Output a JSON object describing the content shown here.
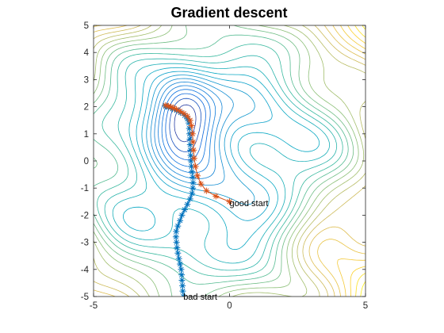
{
  "chart_data": {
    "type": "line",
    "title": "Gradient descent",
    "xlabel": "",
    "ylabel": "",
    "xlim": [
      -5,
      5
    ],
    "ylim": [
      -5,
      5
    ],
    "xticks": [
      -5,
      0,
      5
    ],
    "yticks": [
      -5,
      -4,
      -3,
      -2,
      -1,
      0,
      1,
      2,
      3,
      4,
      5
    ],
    "grid": false,
    "legend": "none",
    "background": "contour",
    "contour_colormap": "parula",
    "series": [
      {
        "color": "#0072BD",
        "marker": "*",
        "points": [
          [
            -1.7,
            -5.0
          ],
          [
            -1.72,
            -4.8
          ],
          [
            -1.73,
            -4.6
          ],
          [
            -1.75,
            -4.4
          ],
          [
            -1.76,
            -4.2
          ],
          [
            -1.78,
            -4.0
          ],
          [
            -1.82,
            -3.8
          ],
          [
            -1.86,
            -3.6
          ],
          [
            -1.9,
            -3.4
          ],
          [
            -1.93,
            -3.2
          ],
          [
            -1.95,
            -3.0
          ],
          [
            -1.97,
            -2.8
          ],
          [
            -1.96,
            -2.6
          ],
          [
            -1.9,
            -2.4
          ],
          [
            -1.82,
            -2.2
          ],
          [
            -1.75,
            -2.0
          ],
          [
            -1.65,
            -1.8
          ],
          [
            -1.55,
            -1.6
          ],
          [
            -1.45,
            -1.4
          ],
          [
            -1.38,
            -1.2
          ],
          [
            -1.35,
            -1.0
          ],
          [
            -1.34,
            -0.8
          ],
          [
            -1.35,
            -0.6
          ],
          [
            -1.38,
            -0.4
          ],
          [
            -1.4,
            -0.2
          ],
          [
            -1.42,
            0.0
          ],
          [
            -1.43,
            0.2
          ],
          [
            -1.44,
            0.4
          ],
          [
            -1.45,
            0.6
          ],
          [
            -1.46,
            0.8
          ],
          [
            -1.47,
            1.0
          ],
          [
            -1.48,
            1.2
          ],
          [
            -1.5,
            1.4
          ],
          [
            -1.55,
            1.55
          ],
          [
            -1.65,
            1.68
          ],
          [
            -1.8,
            1.78
          ],
          [
            -1.95,
            1.86
          ],
          [
            -2.1,
            1.92
          ],
          [
            -2.25,
            1.98
          ],
          [
            -2.35,
            2.02
          ]
        ]
      },
      {
        "color": "#D95319",
        "marker": "*",
        "points": [
          [
            0.0,
            -1.5
          ],
          [
            -0.5,
            -1.3
          ],
          [
            -0.85,
            -1.1
          ],
          [
            -1.05,
            -0.85
          ],
          [
            -1.18,
            -0.55
          ],
          [
            -1.25,
            -0.2
          ],
          [
            -1.3,
            0.1
          ],
          [
            -1.32,
            0.4
          ],
          [
            -1.34,
            0.7
          ],
          [
            -1.36,
            1.0
          ],
          [
            -1.4,
            1.3
          ],
          [
            -1.45,
            1.5
          ],
          [
            -1.55,
            1.65
          ],
          [
            -1.68,
            1.75
          ],
          [
            -1.82,
            1.83
          ],
          [
            -1.95,
            1.9
          ],
          [
            -2.05,
            1.95
          ],
          [
            -2.15,
            1.99
          ],
          [
            -2.25,
            2.02
          ],
          [
            -2.35,
            2.05
          ]
        ]
      }
    ],
    "annotations": [
      {
        "text": "good start",
        "x": 0.0,
        "y": -1.55
      },
      {
        "text": "bad start",
        "x": -1.7,
        "y": -5.0
      }
    ]
  }
}
